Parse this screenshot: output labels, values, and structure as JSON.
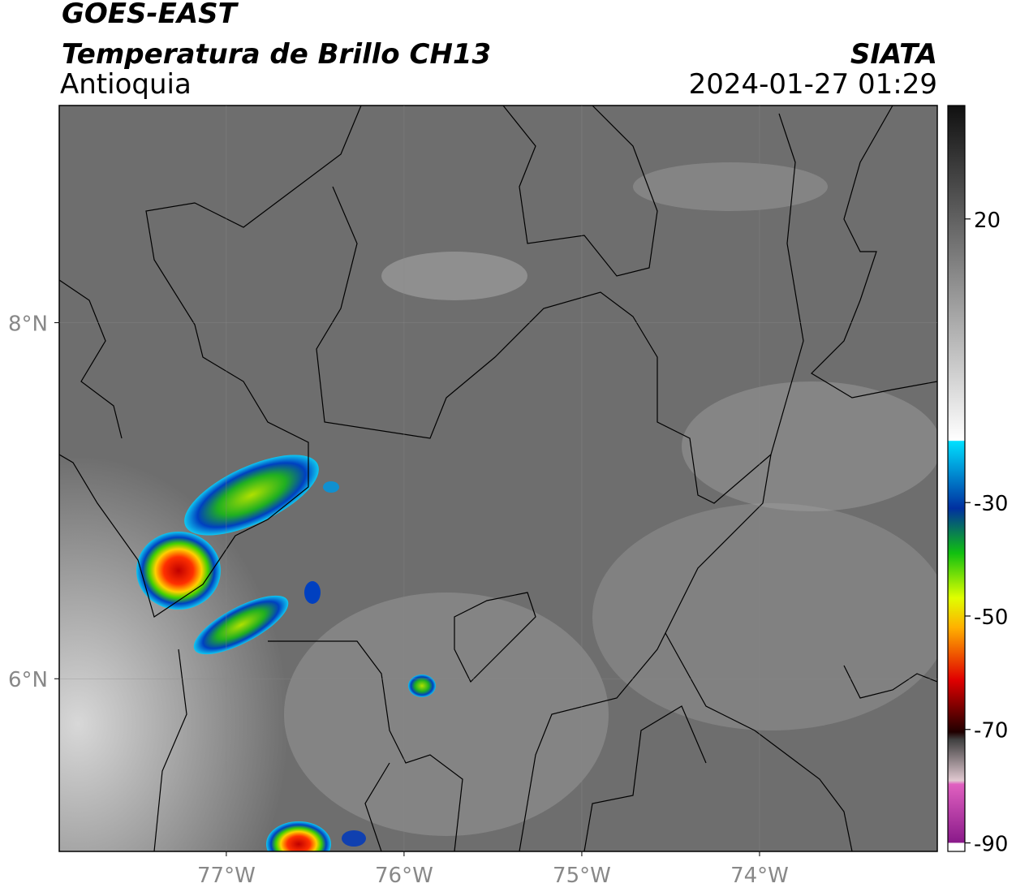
{
  "header": {
    "title": "GOES-EAST",
    "subtitle": "Temperatura de Brillo CH13",
    "region": "Antioquia",
    "org": "SIATA",
    "datetime": "2024-01-27 01:29"
  },
  "map": {
    "xlim": [
      -77.94,
      -73.0
    ],
    "ylim": [
      5.03,
      9.22
    ],
    "xticks": [
      {
        "value": -77,
        "label": "77°W"
      },
      {
        "value": -76,
        "label": "76°W"
      },
      {
        "value": -75,
        "label": "75°W"
      },
      {
        "value": -74,
        "label": "74°W"
      }
    ],
    "yticks": [
      {
        "value": 8,
        "label": "8°N"
      },
      {
        "value": 6,
        "label": "6°N"
      }
    ],
    "grid": true
  },
  "colorbar": {
    "range": [
      -91.5,
      40
    ],
    "ticks": [
      20,
      -30,
      -50,
      -70,
      -90
    ]
  }
}
